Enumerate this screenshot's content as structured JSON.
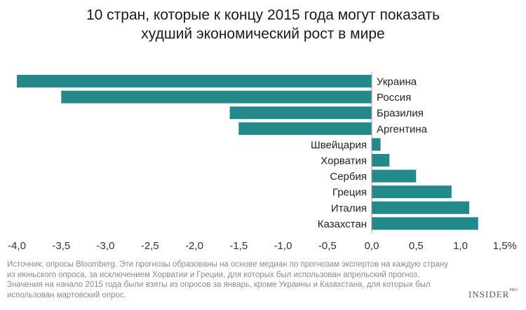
{
  "title": {
    "line1": "10 стран, которые к концу 2015 года могут показать",
    "line2": "худший экономический рост в мире"
  },
  "footnote": {
    "line1": "Источник: опросы Bloomberg. Эти прогнозы образованы на основе медиан по прогнозам экспертов на каждую страну",
    "line2": "из июньского опроса, за исключением Хорватии и Греции, для которых был использован апрельский прогноз.",
    "line3": "Значения на начало 2015 года были взяты из опросов за январь, кроме Украины и Казахстана, для которых был",
    "line4": "использован мартовский опрос."
  },
  "logo": {
    "text": "INSIDER",
    "sup": "PRO"
  },
  "colors": {
    "bar": "#23898a",
    "baseline": "#9a9a9a"
  },
  "chart_data": {
    "type": "bar",
    "orientation": "horizontal",
    "categories": [
      "Украина",
      "Россия",
      "Бразилия",
      "Аргентина",
      "Швейцария",
      "Хорватия",
      "Сербия",
      "Греция",
      "Италия",
      "Казахстан"
    ],
    "values": [
      -4.0,
      -3.5,
      -1.6,
      -1.5,
      0.1,
      0.2,
      0.5,
      0.9,
      1.1,
      1.2
    ],
    "xlim": [
      -4.0,
      1.5
    ],
    "ticks": [
      -4.0,
      -3.5,
      -3.0,
      -2.5,
      -2.0,
      -1.5,
      -1.0,
      -0.5,
      0.0,
      0.5,
      1.0,
      1.5
    ],
    "tick_labels": [
      "-4,0",
      "-3,5",
      "-3,0",
      "-2,5",
      "-2,0",
      "-1,5",
      "-1,0",
      "-0,5",
      "0,0",
      "0,5",
      "1,0",
      "1,5%"
    ],
    "grid": false,
    "legend": "none"
  }
}
